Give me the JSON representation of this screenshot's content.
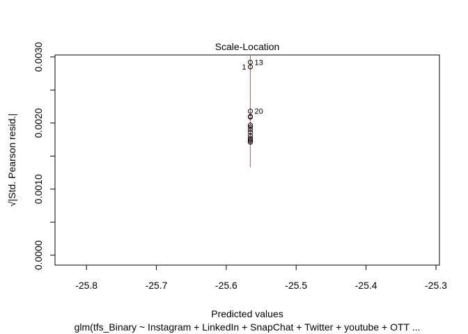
{
  "chart_data": {
    "type": "scatter",
    "title": "Scale-Location",
    "xlabel": "Predicted values",
    "ylabel": "√|Std. Pearson resid.|",
    "ylabel_parts": {
      "root": "√",
      "text": "Std. Pearson resid."
    },
    "subtitle": "glm(tfs_Binary ~ Instagram + LinkedIn + SnapChat + Twitter + youtube + OTT  ...",
    "xlim": [
      -25.845,
      -25.295
    ],
    "ylim": [
      -0.00015,
      0.00303
    ],
    "x_ticks": [
      -25.8,
      -25.7,
      -25.6,
      -25.5,
      -25.4,
      -25.3
    ],
    "x_tick_labels": [
      "-25.8",
      "-25.7",
      "-25.6",
      "-25.5",
      "-25.4",
      "-25.3"
    ],
    "y_ticks": [
      0.0,
      0.0005,
      0.001,
      0.0015,
      0.002,
      0.0025,
      0.003
    ],
    "y_tick_labels": [
      "0.0000",
      "",
      "0.0010",
      "",
      "0.0020",
      "",
      "0.0030"
    ],
    "grid": false,
    "point_color": "#000000",
    "smooth_color": "#DF536B",
    "points": [
      {
        "x": -25.5655,
        "y": 0.00292,
        "label": "13"
      },
      {
        "x": -25.5655,
        "y": 0.00285,
        "label": "1"
      },
      {
        "x": -25.5655,
        "y": 0.00218,
        "label": "20"
      },
      {
        "x": -25.5655,
        "y": 0.0021,
        "label": ""
      },
      {
        "x": -25.5655,
        "y": 0.00209,
        "label": ""
      },
      {
        "x": -25.5655,
        "y": 0.00197,
        "label": ""
      },
      {
        "x": -25.5655,
        "y": 0.00194,
        "label": ""
      },
      {
        "x": -25.5655,
        "y": 0.0019,
        "label": ""
      },
      {
        "x": -25.5655,
        "y": 0.00186,
        "label": ""
      },
      {
        "x": -25.5655,
        "y": 0.00181,
        "label": ""
      },
      {
        "x": -25.5655,
        "y": 0.00177,
        "label": ""
      },
      {
        "x": -25.5655,
        "y": 0.00175,
        "label": ""
      },
      {
        "x": -25.5655,
        "y": 0.00173,
        "label": ""
      },
      {
        "x": -25.5655,
        "y": 0.00171,
        "label": ""
      }
    ],
    "smooth_line": {
      "x": [
        -25.5655,
        -25.5655
      ],
      "y": [
        0.00133,
        0.00303
      ]
    }
  }
}
